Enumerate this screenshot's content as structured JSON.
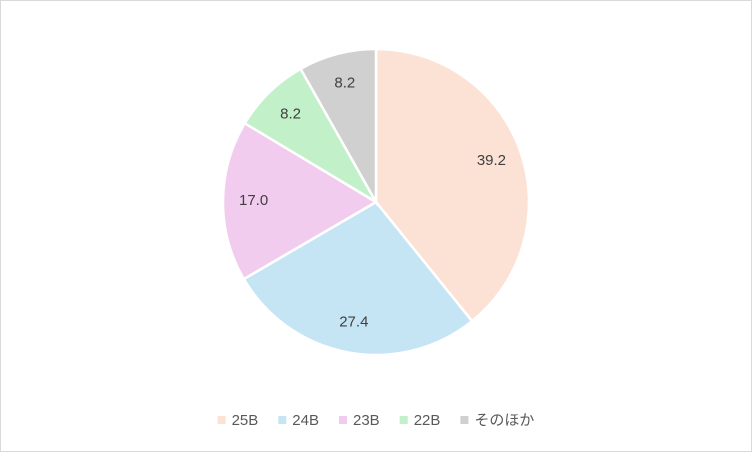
{
  "chart_data": {
    "type": "pie",
    "categories": [
      "25B",
      "24B",
      "23B",
      "22B",
      "そのほか"
    ],
    "values": [
      39.2,
      27.4,
      17.0,
      8.2,
      8.2
    ],
    "value_labels": [
      "39.2",
      "27.4",
      "17.0",
      "8.2",
      "8.2"
    ],
    "colors": [
      "#fbe2d5",
      "#c5e5f5",
      "#f1ccee",
      "#c2f0c8",
      "#d0d0d0"
    ],
    "legend": "bottom"
  }
}
